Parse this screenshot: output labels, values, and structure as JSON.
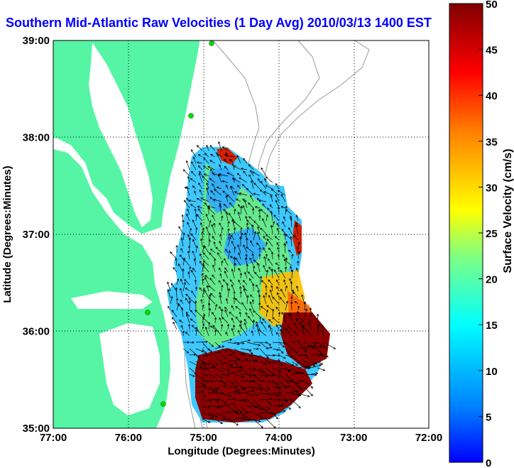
{
  "title": "Southern Mid-Atlantic Raw Velocities (1 Day Avg) 2010/03/13 1400 EST",
  "axes": {
    "xlabel": "Longitude (Degrees:Minutes)",
    "ylabel": "Latitude (Degrees:Minutes)",
    "x_ticks": [
      "77:00",
      "76:00",
      "75:00",
      "74:00",
      "73:00",
      "72:00"
    ],
    "y_ticks": [
      "39:00",
      "38:00",
      "37:00",
      "36:00",
      "35:00"
    ]
  },
  "colorbar": {
    "label": "Surface Velocity (cm/s)",
    "min": 0,
    "max": 50,
    "ticks": [
      "50",
      "45",
      "40",
      "35",
      "30",
      "25",
      "20",
      "15",
      "10",
      "5",
      "0"
    ]
  },
  "colors": {
    "land": "#55f5a5",
    "bathymetry": "#999999",
    "station": "#00dd00",
    "title": "#0000ff"
  }
}
